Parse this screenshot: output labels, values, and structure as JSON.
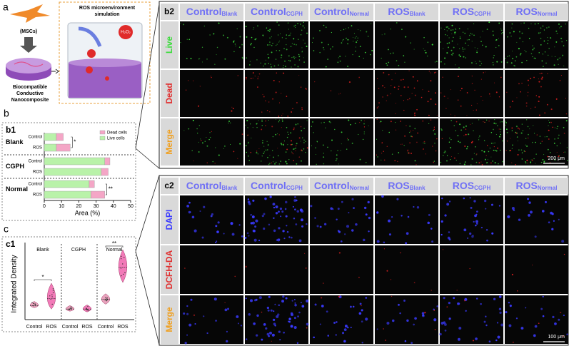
{
  "panel_a": {
    "label": "a",
    "cells": "(MSCs)",
    "material": [
      "Biocompatible",
      "Conductive",
      "Nanocomposite"
    ],
    "simulation": [
      "ROS microenvironment",
      "simulation"
    ],
    "reagent": "H₂O₂"
  },
  "panel_b": {
    "label": "b"
  },
  "panel_c": {
    "label": "c"
  },
  "chart_data": [
    {
      "type": "bar",
      "label": "b1",
      "orientation": "horizontal",
      "stacked": true,
      "groups": [
        "Blank",
        "CGPH",
        "Normal"
      ],
      "categories": [
        "Control",
        "ROS",
        "Control",
        "ROS",
        "Control",
        "ROS"
      ],
      "series": [
        {
          "name": "Dead cells",
          "color": "#f4a6c6",
          "values": [
            4,
            8,
            3,
            4,
            3,
            8
          ]
        },
        {
          "name": "Live cells",
          "color": "#b9f2a9",
          "values": [
            7,
            7,
            35,
            33,
            26,
            27
          ]
        }
      ],
      "xlim": [
        0,
        50
      ],
      "xticks": [
        0,
        10,
        20,
        30,
        40,
        50
      ],
      "xlabel": "Area (%)",
      "annotations": [
        "*",
        "**"
      ]
    },
    {
      "type": "violin",
      "label": "c1",
      "groups": [
        "Blank",
        "CGPH",
        "Normal"
      ],
      "categories": [
        "Control",
        "ROS",
        "Control",
        "ROS",
        "Control",
        "ROS"
      ],
      "colors": [
        "#e9a3bd",
        "#f27ab8",
        "#e9a3bd",
        "#f27ab8",
        "#e9a3bd",
        "#f27ab8"
      ],
      "values": [
        2.0,
        3.0,
        1.5,
        1.5,
        2.9,
        7.5
      ],
      "mins": [
        1.7,
        1.5,
        1.2,
        1.1,
        2.2,
        5.3
      ],
      "maxs": [
        2.6,
        5.2,
        2.0,
        2.1,
        3.7,
        10.0
      ],
      "ylim": [
        0,
        10.5
      ],
      "ylabel": "Integrated Density",
      "annotations": [
        "*",
        "**"
      ]
    }
  ],
  "panel_b2": {
    "label": "b2",
    "columns": [
      {
        "main": "Control",
        "sub": "Blank"
      },
      {
        "main": "Control",
        "sub": "CGPH"
      },
      {
        "main": "Control",
        "sub": "Normal"
      },
      {
        "main": "ROS",
        "sub": "Blank"
      },
      {
        "main": "ROS",
        "sub": "CGPH"
      },
      {
        "main": "ROS",
        "sub": "Normal"
      }
    ],
    "rows": [
      "Live",
      "Dead",
      "Merge"
    ],
    "scale_bar": "200 μm"
  },
  "panel_c2": {
    "label": "c2",
    "columns": [
      {
        "main": "Control",
        "sub": "Blank"
      },
      {
        "main": "Control",
        "sub": "CGPH"
      },
      {
        "main": "Control",
        "sub": "Normal"
      },
      {
        "main": "ROS",
        "sub": "Blank"
      },
      {
        "main": "ROS",
        "sub": "CGPH"
      },
      {
        "main": "ROS",
        "sub": "Normal"
      }
    ],
    "rows": [
      "DAPI",
      "DCFH-DA",
      "Merge"
    ],
    "scale_bar": "100 μm"
  }
}
